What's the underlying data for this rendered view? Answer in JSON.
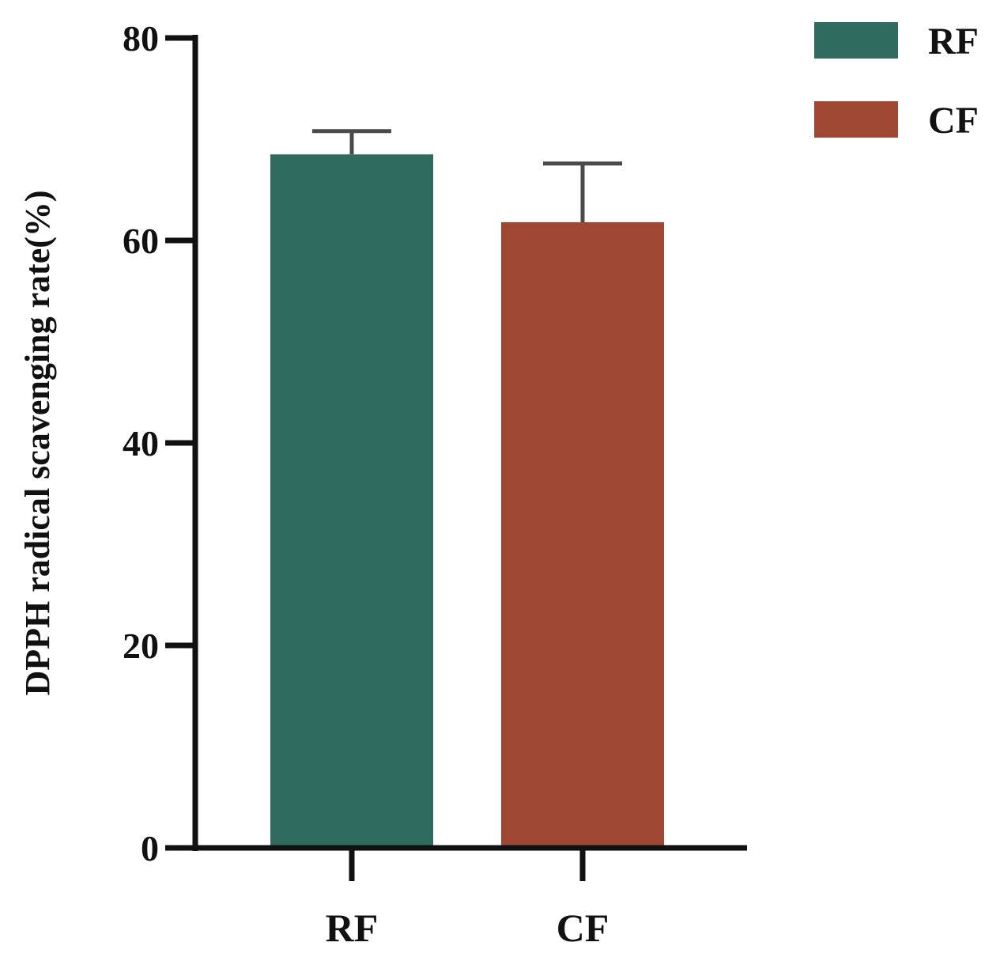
{
  "chart_data": {
    "type": "bar",
    "title": "",
    "xlabel": "",
    "ylabel": "DPPH radical scavenging rate(%)",
    "categories": [
      "RF",
      "CF"
    ],
    "values": [
      68.5,
      61.8
    ],
    "errors": [
      2.3,
      5.8
    ],
    "colors": [
      "#2f6b5f",
      "#a04733"
    ],
    "ylim": [
      0,
      80
    ],
    "yticks": [
      "0",
      "20",
      "40",
      "60",
      "80"
    ],
    "grid": false,
    "legend": {
      "placement": "top-right",
      "entries": [
        {
          "label": "RF",
          "color": "#2f6b5f"
        },
        {
          "label": "CF",
          "color": "#a04733"
        }
      ]
    }
  }
}
